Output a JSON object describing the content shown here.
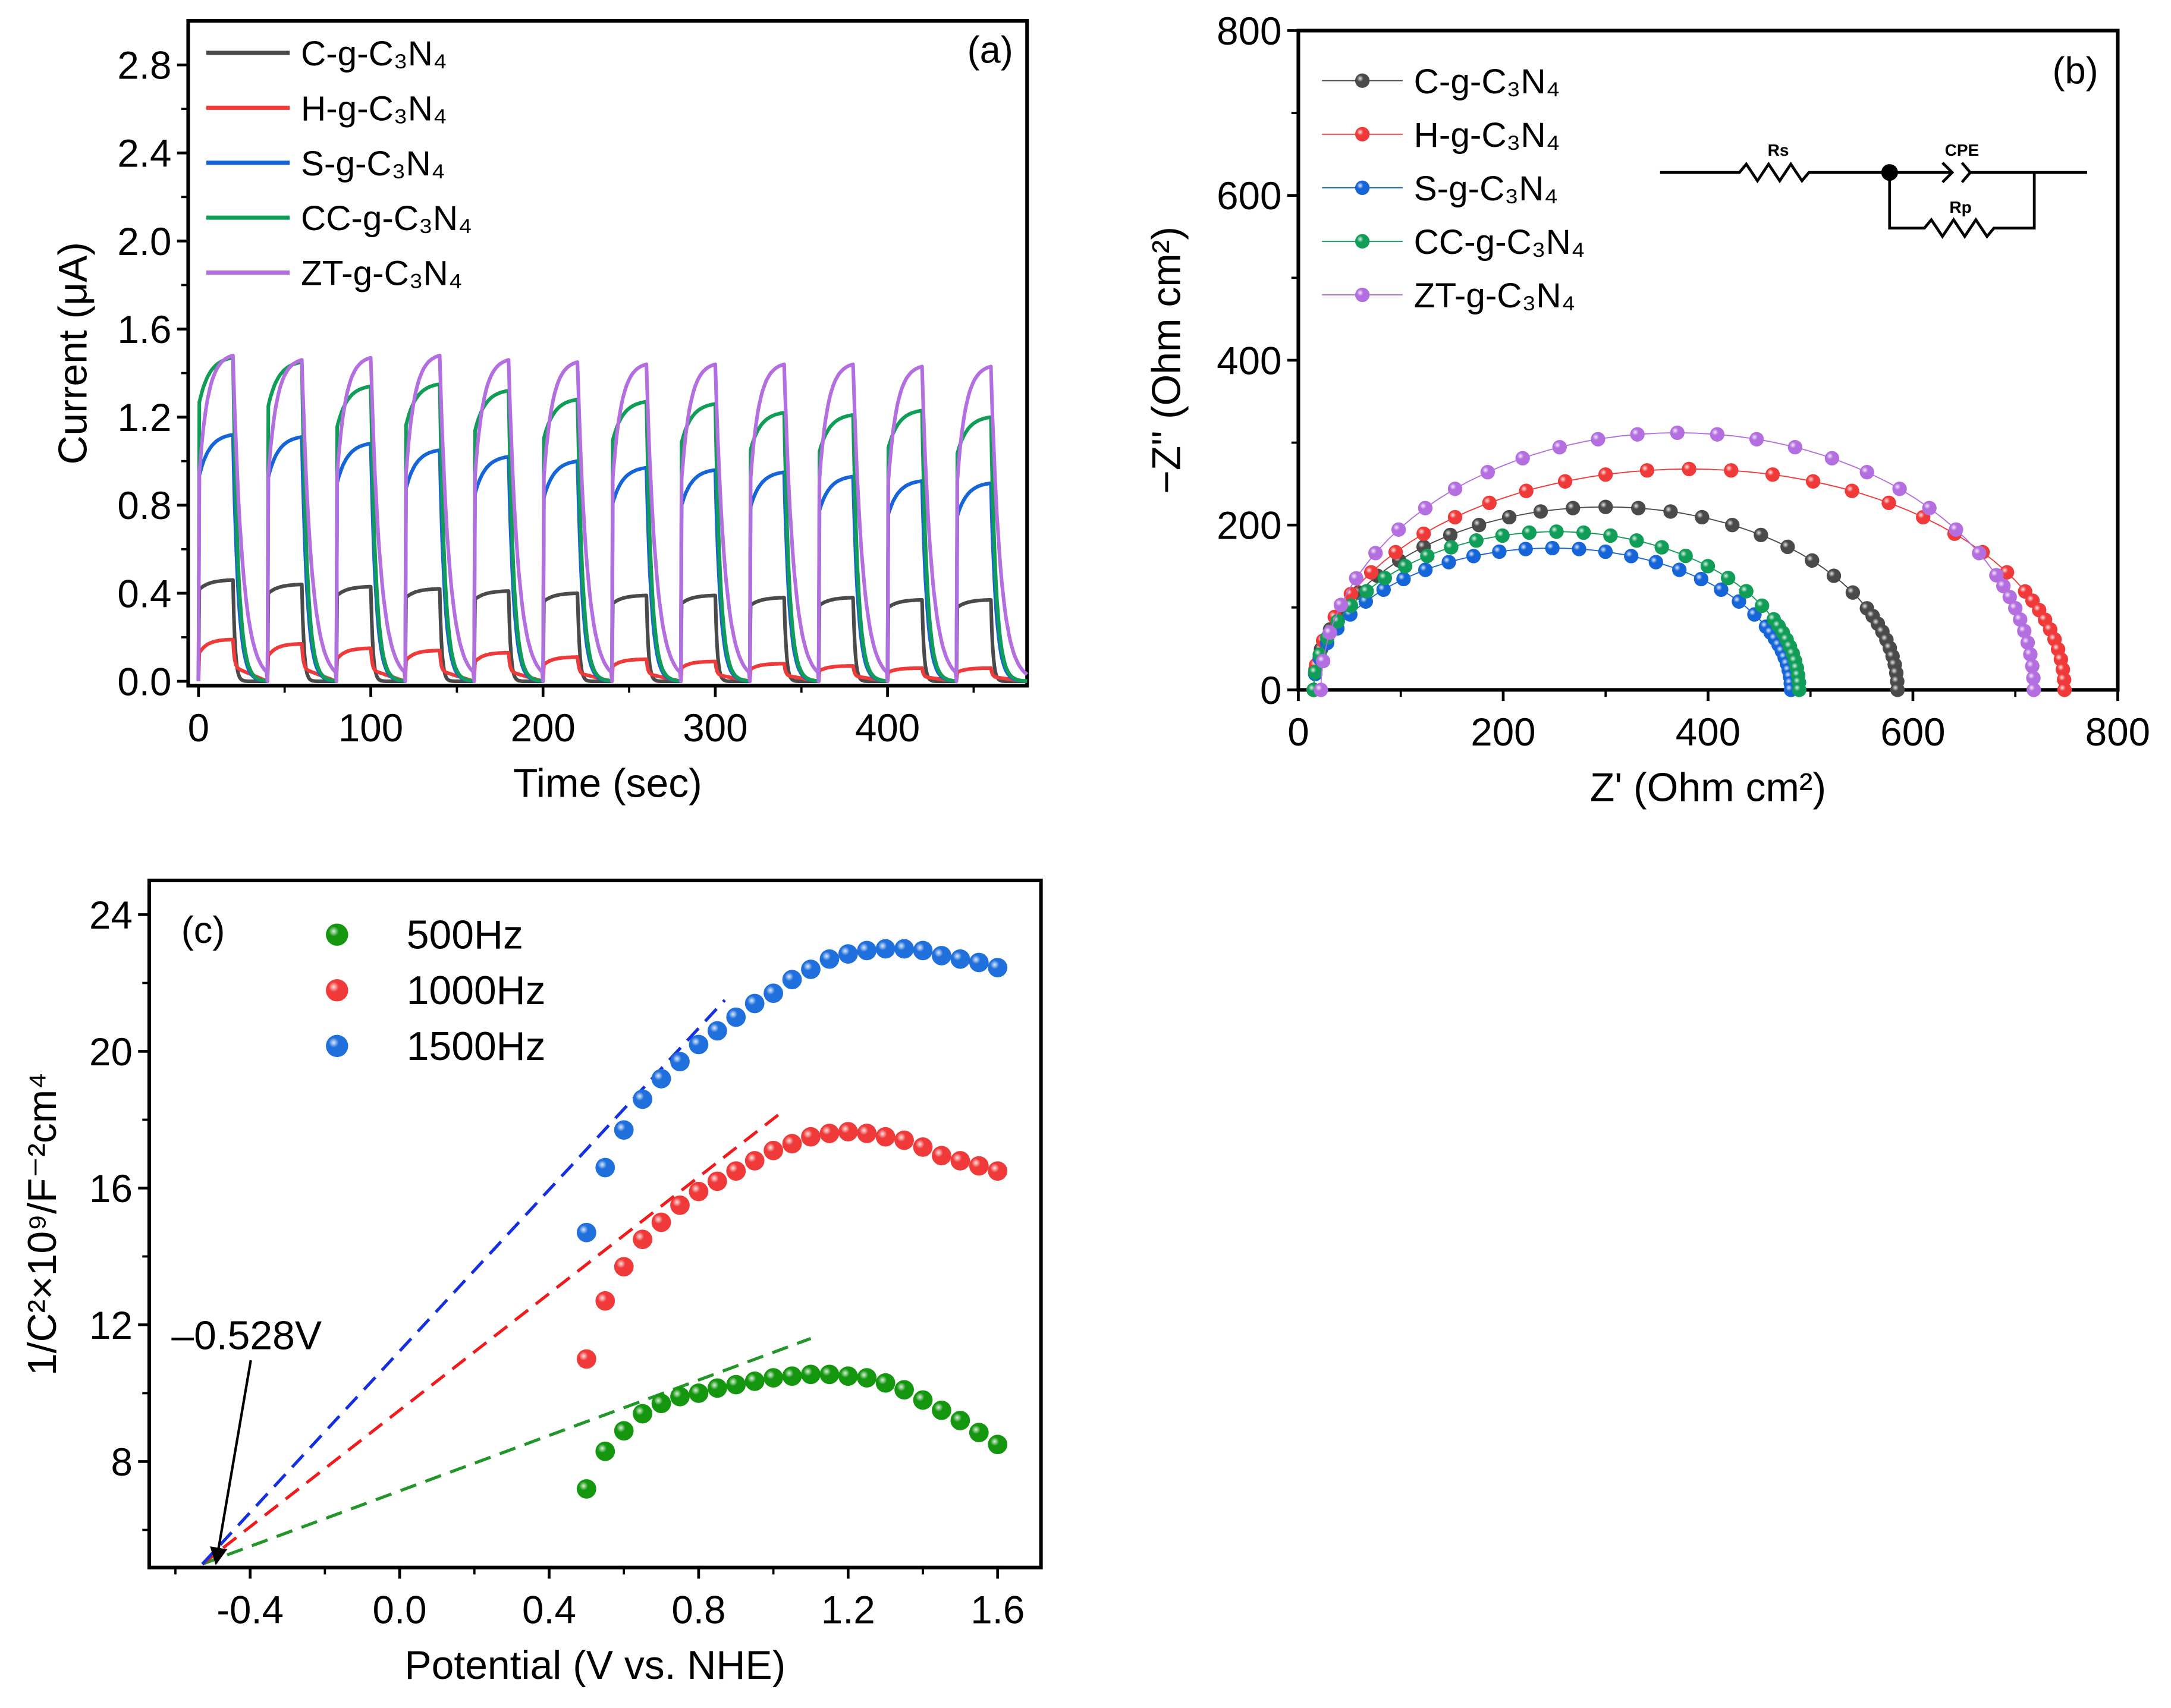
{
  "chart_data": [
    {
      "panel": "(a)",
      "type": "line",
      "xlabel": "Time (sec)",
      "ylabel": "Current (μA)",
      "xlim": [
        -6,
        481
      ],
      "ylim": [
        -0.02,
        3.0
      ],
      "xticks": [
        "0",
        "100",
        "200",
        "300",
        "400"
      ],
      "yticks": [
        "0.0",
        "0.4",
        "0.8",
        "1.2",
        "1.6",
        "2.0",
        "2.4",
        "2.8"
      ],
      "light_on_times_s": [
        0,
        40,
        80,
        120,
        160,
        200,
        240,
        280,
        320,
        360,
        400,
        440
      ],
      "light_on_duration_s": 20,
      "legend_position": "top-left",
      "series": [
        {
          "name": "C-g-C₃N₄",
          "color": "#4a4a4a",
          "cycle_peaks": [
            0.46,
            0.44,
            0.43,
            0.42,
            0.41,
            0.4,
            0.39,
            0.39,
            0.38,
            0.38,
            0.37,
            0.37
          ]
        },
        {
          "name": "H-g-C₃N₄",
          "color": "#f03a3a",
          "cycle_peaks": [
            0.19,
            0.17,
            0.15,
            0.14,
            0.13,
            0.11,
            0.1,
            0.09,
            0.08,
            0.07,
            0.06,
            0.06
          ]
        },
        {
          "name": "S-g-C₃N₄",
          "color": "#1565d8",
          "cycle_peaks": [
            1.12,
            1.11,
            1.08,
            1.05,
            1.02,
            1.0,
            0.97,
            0.96,
            0.95,
            0.93,
            0.91,
            0.9
          ]
        },
        {
          "name": "CC-g-C₃N₄",
          "color": "#0f9d58",
          "cycle_peaks": [
            1.47,
            1.45,
            1.34,
            1.35,
            1.32,
            1.28,
            1.27,
            1.26,
            1.22,
            1.21,
            1.23,
            1.2
          ]
        },
        {
          "name": "ZT-g-C₃N₄",
          "color": "#b36ee0",
          "cycle_peaks": [
            1.48,
            1.46,
            1.47,
            1.48,
            1.46,
            1.45,
            1.44,
            1.44,
            1.44,
            1.44,
            1.43,
            1.43
          ]
        }
      ]
    },
    {
      "panel": "(b)",
      "type": "scatter",
      "xlabel": "Z' (Ohm cm²)",
      "ylabel": "−Z'' (Ohm cm²)",
      "xlim": [
        0,
        800
      ],
      "ylim": [
        0,
        800
      ],
      "xticks": [
        "0",
        "200",
        "400",
        "600",
        "800"
      ],
      "yticks": [
        "0",
        "200",
        "400",
        "600",
        "800"
      ],
      "legend_position": "top-left",
      "circuit": {
        "r1": "Rs",
        "cpe": "CPE",
        "r2": "Rp"
      },
      "series": [
        {
          "name": "C-g-C₃N₄",
          "color": "#4a4a4a",
          "z_start": 15,
          "z_end": 585,
          "peak_minus_zim": 222
        },
        {
          "name": "H-g-C₃N₄",
          "color": "#f03a3a",
          "z_start": 15,
          "z_end": 748,
          "peak_minus_zim": 268
        },
        {
          "name": "S-g-C₃N₄",
          "color": "#1565d8",
          "z_start": 15,
          "z_end": 481,
          "peak_minus_zim": 172
        },
        {
          "name": "CC-g-C₃N₄",
          "color": "#0f9d58",
          "z_start": 15,
          "z_end": 489,
          "peak_minus_zim": 192
        },
        {
          "name": "ZT-g-C₃N₄",
          "color": "#b36ee0",
          "z_start": 22,
          "z_end": 718,
          "peak_minus_zim": 312
        }
      ]
    },
    {
      "panel": "(c)",
      "type": "scatter",
      "xlabel": "Potential (V vs. NHE)",
      "ylabel": "1/C²×10⁹/F⁻²cm⁴",
      "xlim": [
        -0.67,
        1.716
      ],
      "ylim": [
        4.9,
        25.0
      ],
      "xticks": [
        "-0.4",
        "0.0",
        "0.4",
        "0.8",
        "1.2",
        "1.6"
      ],
      "yticks": [
        "8",
        "12",
        "16",
        "20",
        "24"
      ],
      "legend_position": "top-left",
      "annotation": "–0.528V",
      "flat_band_potential": -0.528,
      "x": [
        0.5,
        0.55,
        0.6,
        0.65,
        0.7,
        0.75,
        0.8,
        0.85,
        0.9,
        0.95,
        1.0,
        1.05,
        1.1,
        1.15,
        1.2,
        1.25,
        1.3,
        1.35,
        1.4,
        1.45,
        1.5,
        1.55,
        1.6
      ],
      "series": [
        {
          "name": "500Hz",
          "color": "#14960f",
          "line_color": "#23962a",
          "fit_end": [
            1.1,
            11.6
          ],
          "values": [
            7.2,
            8.3,
            8.9,
            9.4,
            9.7,
            9.9,
            10.0,
            10.15,
            10.25,
            10.35,
            10.45,
            10.5,
            10.55,
            10.55,
            10.5,
            10.45,
            10.3,
            10.1,
            9.8,
            9.5,
            9.2,
            8.85,
            8.5
          ]
        },
        {
          "name": "1000Hz",
          "color": "#f03a3a",
          "line_color": "#ee1c1c",
          "fit_end": [
            1.02,
            18.2
          ],
          "values": [
            11.0,
            12.7,
            13.7,
            14.5,
            15.0,
            15.5,
            15.9,
            16.2,
            16.5,
            16.8,
            17.1,
            17.3,
            17.5,
            17.6,
            17.65,
            17.6,
            17.5,
            17.4,
            17.2,
            16.95,
            16.8,
            16.65,
            16.5
          ]
        },
        {
          "name": "1500Hz",
          "color": "#1f6fdc",
          "line_color": "#1530e0",
          "fit_end": [
            0.87,
            21.5
          ],
          "values": [
            14.7,
            16.6,
            17.7,
            18.6,
            19.2,
            19.7,
            20.2,
            20.6,
            21.0,
            21.4,
            21.7,
            22.1,
            22.4,
            22.7,
            22.85,
            22.95,
            23.0,
            23.0,
            22.95,
            22.8,
            22.7,
            22.6,
            22.45
          ]
        }
      ]
    }
  ]
}
